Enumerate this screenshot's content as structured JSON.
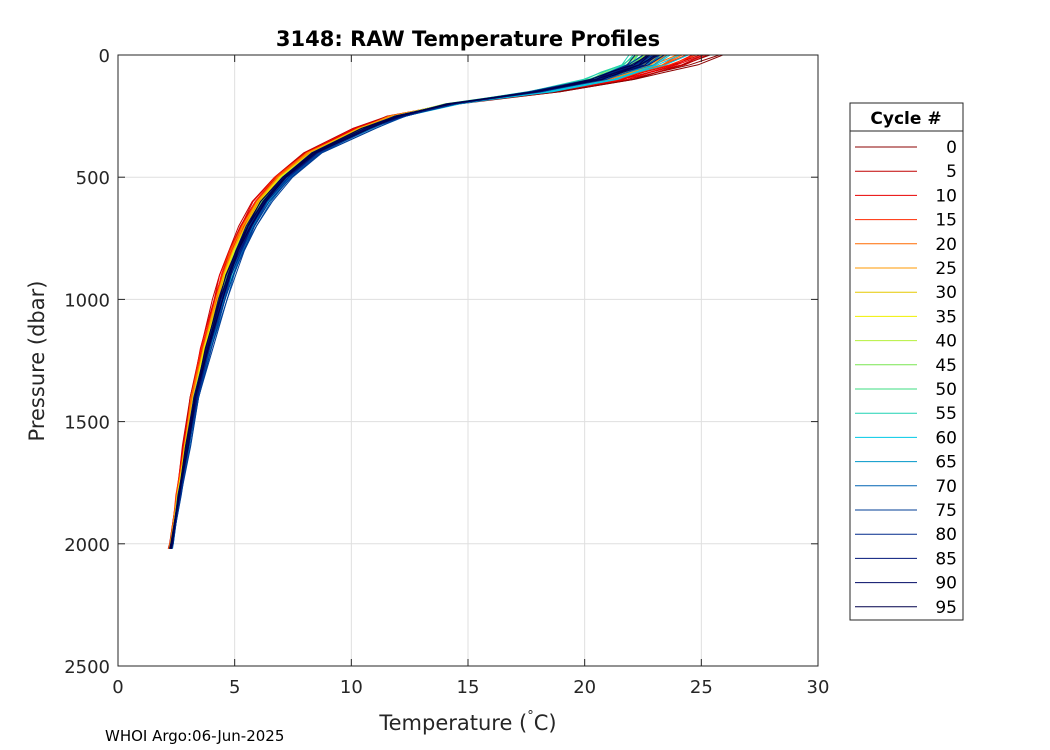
{
  "chart_data": {
    "type": "line",
    "title": "3148: RAW Temperature Profiles",
    "xlabel": "Temperature (",
    "xlabel_unit": "C)",
    "xlabel_degree": "°",
    "ylabel": "Pressure (dbar)",
    "xlim": [
      0,
      30
    ],
    "ylim": [
      0,
      2500
    ],
    "y_reversed": true,
    "grid": true,
    "xticks": [
      "0",
      "5",
      "10",
      "15",
      "20",
      "25",
      "30"
    ],
    "yticks": [
      "0",
      "500",
      "1000",
      "1500",
      "2000",
      "2500"
    ],
    "legend": {
      "title": "Cycle #",
      "placement": "right-outside",
      "entries": [
        {
          "label": "0",
          "color": "#8b0000"
        },
        {
          "label": "5",
          "color": "#c00000"
        },
        {
          "label": "10",
          "color": "#e80000"
        },
        {
          "label": "15",
          "color": "#ff2a00"
        },
        {
          "label": "20",
          "color": "#ff6a00"
        },
        {
          "label": "25",
          "color": "#ff9a00"
        },
        {
          "label": "30",
          "color": "#e6c800"
        },
        {
          "label": "35",
          "color": "#f0f000"
        },
        {
          "label": "40",
          "color": "#b4f03c"
        },
        {
          "label": "45",
          "color": "#78e650"
        },
        {
          "label": "50",
          "color": "#3cdc82"
        },
        {
          "label": "55",
          "color": "#1ed2b4"
        },
        {
          "label": "60",
          "color": "#00c8e6"
        },
        {
          "label": "65",
          "color": "#0096c8"
        },
        {
          "label": "70",
          "color": "#0064b4"
        },
        {
          "label": "75",
          "color": "#003c96"
        },
        {
          "label": "80",
          "color": "#00288c"
        },
        {
          "label": "85",
          "color": "#001478"
        },
        {
          "label": "90",
          "color": "#000a64"
        },
        {
          "label": "95",
          "color": "#00004b"
        }
      ]
    },
    "profile_shape": {
      "pressure": [
        0,
        40,
        70,
        100,
        150,
        200,
        250,
        300,
        400,
        500,
        600,
        700,
        800,
        900,
        1000,
        1200,
        1400,
        1600,
        1800,
        2000,
        2020
      ],
      "temperature": [
        24.5,
        23.6,
        22.5,
        21.5,
        18.5,
        14.5,
        12.0,
        10.6,
        8.4,
        7.1,
        6.2,
        5.6,
        5.1,
        4.7,
        4.4,
        3.8,
        3.3,
        2.95,
        2.6,
        2.3,
        2.25
      ]
    },
    "profiles": [
      {
        "cycle": 0,
        "color": "#8b0000",
        "surface_temp": 26.2,
        "offset": -0.2
      },
      {
        "cycle": 5,
        "color": "#c00000",
        "surface_temp": 25.8,
        "offset": -0.35
      },
      {
        "cycle": 10,
        "color": "#e80000",
        "surface_temp": 25.5,
        "offset": -0.3
      },
      {
        "cycle": 15,
        "color": "#ff2a00",
        "surface_temp": 25.0,
        "offset": -0.25
      },
      {
        "cycle": 20,
        "color": "#ff6a00",
        "surface_temp": 24.4,
        "offset": -0.2
      },
      {
        "cycle": 25,
        "color": "#ff9a00",
        "surface_temp": 24.0,
        "offset": -0.15
      },
      {
        "cycle": 30,
        "color": "#e6c800",
        "surface_temp": 23.6,
        "offset": -0.1
      },
      {
        "cycle": 35,
        "color": "#f0f000",
        "surface_temp": 23.3,
        "offset": -0.05
      },
      {
        "cycle": 40,
        "color": "#b4f03c",
        "surface_temp": 23.0,
        "offset": 0.0
      },
      {
        "cycle": 45,
        "color": "#78e650",
        "surface_temp": 22.8,
        "offset": 0.05
      },
      {
        "cycle": 50,
        "color": "#3cdc82",
        "surface_temp": 22.6,
        "offset": 0.1
      },
      {
        "cycle": 55,
        "color": "#1ed2b4",
        "surface_temp": 22.4,
        "offset": 0.15
      },
      {
        "cycle": 60,
        "color": "#00c8e6",
        "surface_temp": 24.2,
        "offset": 0.2
      },
      {
        "cycle": 65,
        "color": "#0096c8",
        "surface_temp": 23.5,
        "offset": 0.15
      },
      {
        "cycle": 70,
        "color": "#0064b4",
        "surface_temp": 23.2,
        "offset": 0.25
      },
      {
        "cycle": 75,
        "color": "#003c96",
        "surface_temp": 23.0,
        "offset": 0.3
      },
      {
        "cycle": 80,
        "color": "#00288c",
        "surface_temp": 22.8,
        "offset": 0.1
      },
      {
        "cycle": 85,
        "color": "#001478",
        "surface_temp": 23.4,
        "offset": 0.05
      },
      {
        "cycle": 90,
        "color": "#000a64",
        "surface_temp": 23.3,
        "offset": 0.0
      },
      {
        "cycle": 95,
        "color": "#00004b",
        "surface_temp": 23.2,
        "offset": 0.02
      }
    ]
  },
  "footer": "WHOI Argo:06-Jun-2025"
}
